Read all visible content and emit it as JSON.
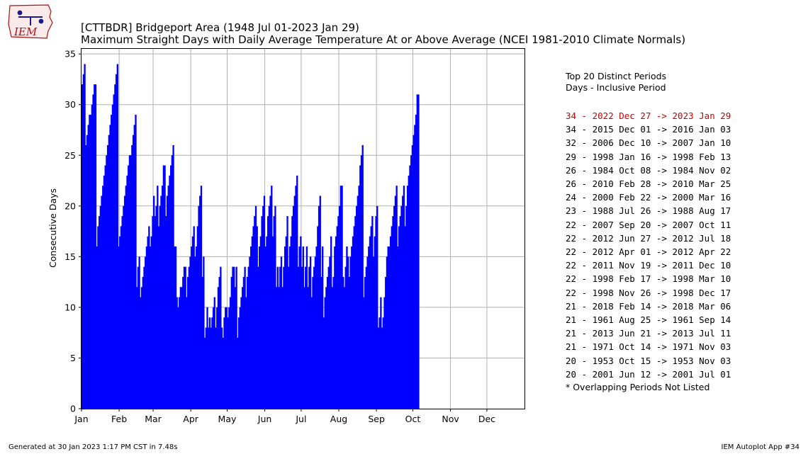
{
  "logo": {
    "text": "IEM",
    "name": "iem-iowa-logo"
  },
  "title": {
    "line1": "[CTTBDR] Bridgeport Area (1948 Jul 01-2023 Jan 29)",
    "line2": "Maximum Straight Days with Daily Average Temperature At or Above Average (NCEI 1981-2010 Climate Normals)"
  },
  "legend": {
    "heading1": "Top 20 Distinct Periods",
    "heading2": "Days - Inclusive Period",
    "highlight_color": "#cc0000",
    "periods": [
      "34 - 2022 Dec 27 -> 2023 Jan 29",
      "34 - 2015 Dec 01 -> 2016 Jan 03",
      "32 - 2006 Dec 10 -> 2007 Jan 10",
      "29 - 1998 Jan 16 -> 1998 Feb 13",
      "26 - 1984 Oct 08 -> 1984 Nov 02",
      "26 - 2010 Feb 28 -> 2010 Mar 25",
      "24 - 2000 Feb 22 -> 2000 Mar 16",
      "23 - 1988 Jul 26 -> 1988 Aug 17",
      "22 - 2007 Sep 20 -> 2007 Oct 11",
      "22 - 2012 Jun 27 -> 2012 Jul 18",
      "22 - 2012 Apr 01 -> 2012 Apr 22",
      "22 - 2011 Nov 19 -> 2011 Dec 10",
      "22 - 1998 Feb 17 -> 1998 Mar 10",
      "22 - 1998 Nov 26 -> 1998 Dec 17",
      "21 - 2018 Feb 14 -> 2018 Mar 06",
      "21 - 1961 Aug 25 -> 1961 Sep 14",
      "21 - 2013 Jun 21 -> 2013 Jul 11",
      "21 - 1971 Oct 14 -> 1971 Nov 03",
      "20 - 1953 Oct 15 -> 1953 Nov 03",
      "20 - 2001 Jun 12 -> 2001 Jul 01"
    ],
    "footnote": "* Overlapping Periods Not Listed"
  },
  "footer": {
    "left": "Generated at 30 Jan 2023 1:17 PM CST in 7.48s",
    "right": "IEM Autoplot App #34"
  },
  "chart_data": {
    "type": "bar",
    "ylabel": "Consecutive Days",
    "ylim": [
      0,
      35.5
    ],
    "yticks": [
      0,
      5,
      10,
      15,
      20,
      25,
      30,
      35
    ],
    "xticks": [
      "Jan",
      "Feb",
      "Mar",
      "Apr",
      "May",
      "Jun",
      "Jul",
      "Aug",
      "Sep",
      "Oct",
      "Nov",
      "Dec"
    ],
    "xtick_days": [
      1,
      32,
      60,
      91,
      121,
      152,
      182,
      213,
      244,
      274,
      305,
      335
    ],
    "x_day_range": [
      1,
      366
    ],
    "grid": true,
    "bar_color": "#0000ff",
    "day_anchors": [
      [
        1,
        32
      ],
      [
        2,
        33
      ],
      [
        3,
        34
      ],
      [
        4,
        26
      ],
      [
        5,
        27
      ],
      [
        6,
        28
      ],
      [
        8,
        29
      ],
      [
        9,
        30
      ],
      [
        10,
        31
      ],
      [
        11,
        32
      ],
      [
        12,
        32
      ],
      [
        13,
        16
      ],
      [
        14,
        18
      ],
      [
        15,
        19
      ],
      [
        17,
        21
      ],
      [
        20,
        24
      ],
      [
        23,
        27
      ],
      [
        25,
        29
      ],
      [
        27,
        31
      ],
      [
        29,
        33
      ],
      [
        30,
        34
      ],
      [
        31,
        16
      ],
      [
        33,
        18
      ],
      [
        38,
        23
      ],
      [
        42,
        26
      ],
      [
        43,
        27
      ],
      [
        44,
        28
      ],
      [
        45,
        29
      ],
      [
        46,
        12
      ],
      [
        47,
        14
      ],
      [
        48,
        15
      ],
      [
        49,
        11
      ],
      [
        51,
        13
      ],
      [
        55,
        17
      ],
      [
        56,
        18
      ],
      [
        57,
        16
      ],
      [
        58,
        17
      ],
      [
        59,
        19
      ],
      [
        60,
        21
      ],
      [
        61,
        19
      ],
      [
        62,
        20
      ],
      [
        63,
        22
      ],
      [
        64,
        18
      ],
      [
        66,
        21
      ],
      [
        67,
        22
      ],
      [
        68,
        24
      ],
      [
        69,
        24
      ],
      [
        70,
        19
      ],
      [
        72,
        22
      ],
      [
        74,
        24
      ],
      [
        75,
        25
      ],
      [
        76,
        26
      ],
      [
        77,
        16
      ],
      [
        78,
        16
      ],
      [
        79,
        11
      ],
      [
        80,
        10
      ],
      [
        81,
        11
      ],
      [
        82,
        12
      ],
      [
        83,
        12
      ],
      [
        84,
        13
      ],
      [
        85,
        14
      ],
      [
        86,
        14
      ],
      [
        87,
        11
      ],
      [
        88,
        13
      ],
      [
        90,
        15
      ],
      [
        92,
        17
      ],
      [
        93,
        18
      ],
      [
        94,
        15
      ],
      [
        95,
        16
      ],
      [
        96,
        18
      ],
      [
        98,
        21
      ],
      [
        99,
        22
      ],
      [
        100,
        13
      ],
      [
        101,
        15
      ],
      [
        102,
        7
      ],
      [
        103,
        8
      ],
      [
        104,
        10
      ],
      [
        105,
        8
      ],
      [
        106,
        9
      ],
      [
        107,
        8
      ],
      [
        109,
        10
      ],
      [
        110,
        11
      ],
      [
        111,
        8
      ],
      [
        113,
        12
      ],
      [
        114,
        13
      ],
      [
        115,
        14
      ],
      [
        116,
        8
      ],
      [
        117,
        7
      ],
      [
        118,
        9
      ],
      [
        119,
        10
      ],
      [
        120,
        10
      ],
      [
        121,
        9
      ],
      [
        123,
        11
      ],
      [
        124,
        13
      ],
      [
        125,
        14
      ],
      [
        126,
        14
      ],
      [
        127,
        12
      ],
      [
        128,
        14
      ],
      [
        129,
        7
      ],
      [
        130,
        9
      ],
      [
        132,
        11
      ],
      [
        134,
        13
      ],
      [
        135,
        14
      ],
      [
        136,
        11
      ],
      [
        138,
        14
      ],
      [
        140,
        16
      ],
      [
        142,
        18
      ],
      [
        143,
        19
      ],
      [
        144,
        20
      ],
      [
        145,
        18
      ],
      [
        146,
        14
      ],
      [
        148,
        17
      ],
      [
        150,
        20
      ],
      [
        151,
        21
      ],
      [
        152,
        16
      ],
      [
        153,
        17
      ],
      [
        154,
        19
      ],
      [
        155,
        20
      ],
      [
        156,
        21
      ],
      [
        157,
        22
      ],
      [
        158,
        17
      ],
      [
        159,
        19
      ],
      [
        160,
        20
      ],
      [
        161,
        12
      ],
      [
        162,
        14
      ],
      [
        163,
        12
      ],
      [
        164,
        14
      ],
      [
        165,
        15
      ],
      [
        166,
        12
      ],
      [
        168,
        16
      ],
      [
        169,
        17
      ],
      [
        170,
        19
      ],
      [
        171,
        14
      ],
      [
        173,
        17
      ],
      [
        174,
        19
      ],
      [
        175,
        20
      ],
      [
        176,
        21
      ],
      [
        177,
        22
      ],
      [
        178,
        23
      ],
      [
        179,
        14
      ],
      [
        180,
        16
      ],
      [
        181,
        17
      ],
      [
        182,
        14
      ],
      [
        183,
        16
      ],
      [
        184,
        12
      ],
      [
        185,
        14
      ],
      [
        186,
        16
      ],
      [
        187,
        12
      ],
      [
        188,
        14
      ],
      [
        189,
        15
      ],
      [
        190,
        11
      ],
      [
        192,
        14
      ],
      [
        194,
        16
      ],
      [
        195,
        18
      ],
      [
        196,
        20
      ],
      [
        197,
        21
      ],
      [
        198,
        13
      ],
      [
        199,
        16
      ],
      [
        200,
        9
      ],
      [
        201,
        11
      ],
      [
        202,
        12
      ],
      [
        203,
        13
      ],
      [
        204,
        14
      ],
      [
        205,
        15
      ],
      [
        206,
        17
      ],
      [
        207,
        12
      ],
      [
        208,
        13
      ],
      [
        209,
        16
      ],
      [
        210,
        17
      ],
      [
        211,
        18
      ],
      [
        212,
        19
      ],
      [
        213,
        20
      ],
      [
        214,
        22
      ],
      [
        215,
        22
      ],
      [
        216,
        13
      ],
      [
        217,
        12
      ],
      [
        218,
        14
      ],
      [
        219,
        16
      ],
      [
        220,
        15
      ],
      [
        221,
        13
      ],
      [
        223,
        16
      ],
      [
        224,
        17
      ],
      [
        225,
        18
      ],
      [
        226,
        19
      ],
      [
        228,
        21
      ],
      [
        229,
        22
      ],
      [
        230,
        24
      ],
      [
        232,
        26
      ],
      [
        233,
        11
      ],
      [
        234,
        13
      ],
      [
        236,
        15
      ],
      [
        237,
        16
      ],
      [
        238,
        17
      ],
      [
        239,
        18
      ],
      [
        240,
        19
      ],
      [
        241,
        15
      ],
      [
        242,
        17
      ],
      [
        243,
        19
      ],
      [
        244,
        20
      ],
      [
        245,
        8
      ],
      [
        246,
        9
      ],
      [
        247,
        11
      ],
      [
        248,
        8
      ],
      [
        249,
        9
      ],
      [
        250,
        11
      ],
      [
        251,
        13
      ],
      [
        252,
        15
      ],
      [
        254,
        16
      ],
      [
        255,
        17
      ],
      [
        256,
        18
      ],
      [
        257,
        19
      ],
      [
        258,
        20
      ],
      [
        259,
        21
      ],
      [
        260,
        22
      ],
      [
        261,
        16
      ],
      [
        262,
        18
      ],
      [
        263,
        19
      ],
      [
        264,
        20
      ],
      [
        265,
        21
      ],
      [
        266,
        22
      ],
      [
        267,
        18
      ],
      [
        268,
        20
      ],
      [
        269,
        22
      ],
      [
        271,
        24
      ],
      [
        272,
        25
      ],
      [
        273,
        26
      ],
      [
        274,
        27
      ],
      [
        275,
        28
      ],
      [
        276,
        29
      ],
      [
        277,
        31
      ],
      [
        278,
        31
      ]
    ]
  }
}
